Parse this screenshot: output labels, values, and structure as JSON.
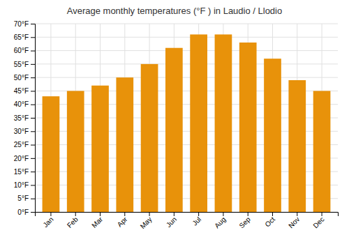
{
  "chart_data": {
    "type": "bar",
    "title": "Average monthly temperatures (°F ) in Laudio / Llodio",
    "categories": [
      "Jan",
      "Feb",
      "Mar",
      "Apr",
      "May",
      "Jun",
      "Jul",
      "Aug",
      "Sep",
      "Oct",
      "Nov",
      "Dec"
    ],
    "values": [
      43,
      45,
      47,
      50,
      55,
      61,
      66,
      66,
      63,
      57,
      49,
      45
    ],
    "color": "#E8920A",
    "ylim": [
      0,
      70
    ],
    "yticks": [
      {
        "value": 0,
        "label": "0°F"
      },
      {
        "value": 5,
        "label": "5°F"
      },
      {
        "value": 10,
        "label": "10°F"
      },
      {
        "value": 15,
        "label": "15°F"
      },
      {
        "value": 20,
        "label": "20°F"
      },
      {
        "value": 25,
        "label": "25°F"
      },
      {
        "value": 30,
        "label": "30°F"
      },
      {
        "value": 35,
        "label": "35°F"
      },
      {
        "value": 40,
        "label": "40°F"
      },
      {
        "value": 45,
        "label": "45°F"
      },
      {
        "value": 50,
        "label": "50°F"
      },
      {
        "value": 55,
        "label": "55°F"
      },
      {
        "value": 60,
        "label": "60°F"
      },
      {
        "value": 65,
        "label": "65°F"
      },
      {
        "value": 70,
        "label": "70°F"
      }
    ],
    "grid": true
  }
}
